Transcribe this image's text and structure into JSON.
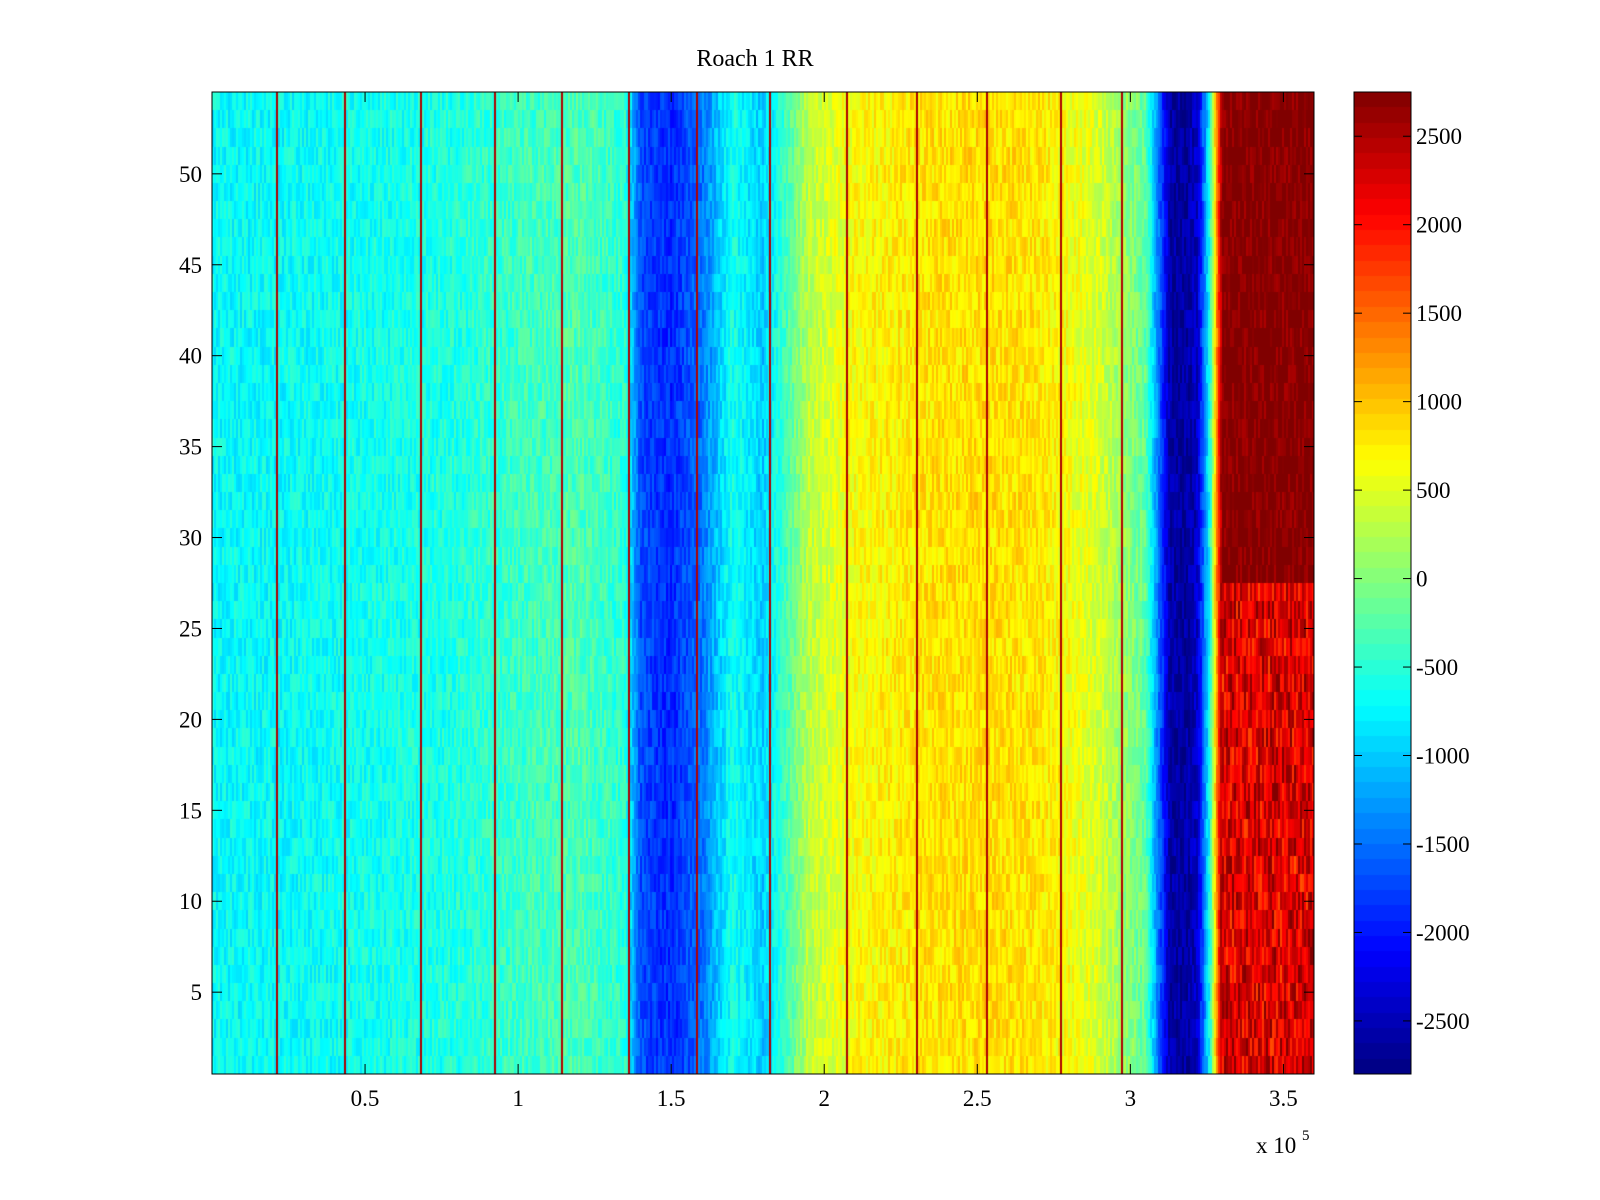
{
  "chart_data": {
    "type": "heatmap",
    "title": "Roach 1 RR",
    "xlabel": "",
    "ylabel": "",
    "x_exponent_label": {
      "base": "x 10",
      "exponent": "5"
    },
    "xlim": [
      0,
      360000
    ],
    "ylim": [
      0.5,
      54.5
    ],
    "x_ticks": [
      50000,
      100000,
      150000,
      200000,
      250000,
      300000,
      350000
    ],
    "x_tick_labels": [
      "0.5",
      "1",
      "1.5",
      "2",
      "2.5",
      "3",
      "3.5"
    ],
    "y_ticks": [
      5,
      10,
      15,
      20,
      25,
      30,
      35,
      40,
      45,
      50
    ],
    "y_tick_labels": [
      "5",
      "10",
      "15",
      "20",
      "25",
      "30",
      "35",
      "40",
      "45",
      "50"
    ],
    "rows": 54,
    "colormap": "jet",
    "clim": [
      -2800,
      2750
    ],
    "colorbar": {
      "ticks": [
        -2500,
        -2000,
        -1500,
        -1000,
        -500,
        0,
        500,
        1000,
        1500,
        2000,
        2500
      ],
      "tick_labels": [
        "-2500",
        "-2000",
        "-1500",
        "-1000",
        "-500",
        "0",
        "500",
        "1000",
        "1500",
        "2000",
        "2500"
      ]
    },
    "column_profile_x": [
      0,
      20000,
      40000,
      60000,
      80000,
      100000,
      120000,
      135000,
      140000,
      150000,
      160000,
      170000,
      180000,
      195000,
      210000,
      230000,
      250000,
      270000,
      290000,
      305000,
      313000,
      318000,
      322000,
      326000,
      330000,
      340000,
      360000
    ],
    "column_profile_values": [
      -700,
      -700,
      -650,
      -600,
      -550,
      -400,
      -300,
      -500,
      -1700,
      -1900,
      -1500,
      -600,
      -1000,
      300,
      650,
      800,
      850,
      800,
      450,
      -200,
      -2600,
      -2650,
      -2400,
      -600,
      2750,
      2750,
      2750
    ],
    "bottom_region_adjustment": {
      "x_from": 330000,
      "y_max": 27,
      "value": 2250
    },
    "narrow_stripes_x": [
      21000,
      43000,
      68000,
      92000,
      114000,
      136000,
      158000,
      182000,
      207000,
      230000,
      253000,
      277000,
      297000
    ],
    "narrow_stripe_value": 2500
  }
}
